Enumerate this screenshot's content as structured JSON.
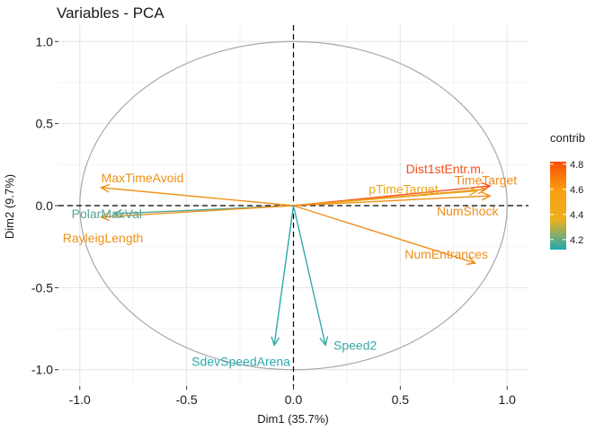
{
  "chart_data": {
    "type": "scatter",
    "subtype": "pca-variable-correlation-circle",
    "title": "Variables - PCA",
    "xlabel": "Dim1 (35.7%)",
    "ylabel": "Dim2 (9.7%)",
    "xlim": [
      -1.1,
      1.1
    ],
    "ylim": [
      -1.1,
      1.1
    ],
    "xticks": [
      -1.0,
      -0.5,
      0.0,
      0.5,
      1.0
    ],
    "yticks": [
      -1.0,
      -0.5,
      0.0,
      0.5,
      1.0
    ],
    "xtick_labels": [
      "-1.0",
      "-0.5",
      "0.0",
      "0.5",
      "1.0"
    ],
    "ytick_labels": [
      "-1.0",
      "-0.5",
      "0.0",
      "0.5",
      "1.0"
    ],
    "grid": true,
    "legend": {
      "title": "contrib",
      "position": "right",
      "tick_labels": [
        "4.2",
        "4.4",
        "4.6",
        "4.8"
      ],
      "tick_values": [
        4.2,
        4.4,
        4.6,
        4.8
      ],
      "range": [
        4.12,
        4.82
      ],
      "gradient_colors": [
        "#20a8b0",
        "#eab020",
        "#f8a010",
        "#fc4e08"
      ]
    },
    "variables": [
      {
        "name": "Dist1stEntr.m.",
        "x": 0.92,
        "y": 0.12,
        "contrib": 4.82,
        "color": "#f94d17"
      },
      {
        "name": "TimeTarget",
        "x": 0.9,
        "y": 0.1,
        "contrib": 4.62,
        "color": "#f08c1a"
      },
      {
        "name": "pTimeTarget",
        "x": 0.86,
        "y": 0.09,
        "contrib": 4.45,
        "color": "#e8a81e"
      },
      {
        "name": "NumShock",
        "x": 0.92,
        "y": 0.06,
        "contrib": 4.58,
        "color": "#ef8f19"
      },
      {
        "name": "NumEntrances",
        "x": 0.85,
        "y": -0.35,
        "contrib": 4.58,
        "color": "#ef8f19"
      },
      {
        "name": "MaxTimeAvoid",
        "x": -0.9,
        "y": 0.11,
        "contrib": 4.55,
        "color": "#ee9219"
      },
      {
        "name": "PolarMaxVal",
        "x": -0.84,
        "y": -0.05,
        "contrib": 4.2,
        "color": "#55a497"
      },
      {
        "name": "RayleigLength",
        "x": -0.9,
        "y": -0.07,
        "contrib": 4.55,
        "color": "#ee9219"
      },
      {
        "name": "SdevSpeedArena",
        "x": -0.09,
        "y": -0.85,
        "contrib": 4.13,
        "color": "#2aa9ad"
      },
      {
        "name": "Speed2",
        "x": 0.15,
        "y": -0.85,
        "contrib": 4.15,
        "color": "#3aa8a6"
      }
    ]
  }
}
